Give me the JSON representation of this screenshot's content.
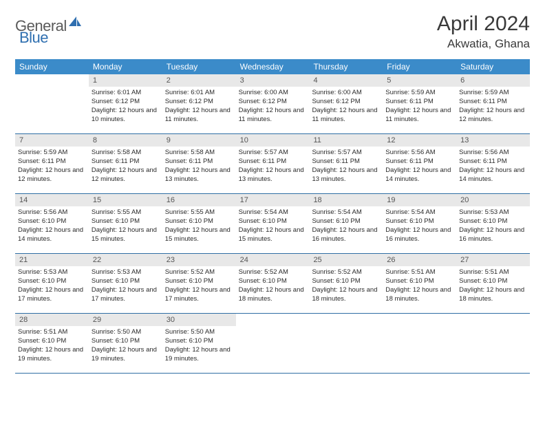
{
  "brand": {
    "part1": "General",
    "part2": "Blue",
    "accent": "#2f6fb0",
    "gray": "#5a5a5a"
  },
  "title": "April 2024",
  "location": "Akwatia, Ghana",
  "colors": {
    "header_bg": "#3b8bc9",
    "header_text": "#ffffff",
    "daynum_bg": "#e8e8e8",
    "daynum_text": "#555555",
    "body_text": "#2a2a2a",
    "row_border": "#2e6da4",
    "page_bg": "#ffffff"
  },
  "fonts": {
    "title_size": 30,
    "location_size": 17,
    "weekday_size": 12,
    "daynum_size": 11,
    "body_size": 9.5
  },
  "weekdays": [
    "Sunday",
    "Monday",
    "Tuesday",
    "Wednesday",
    "Thursday",
    "Friday",
    "Saturday"
  ],
  "blanks_before": 1,
  "days": [
    {
      "n": "1",
      "sunrise": "6:01 AM",
      "sunset": "6:12 PM",
      "daylight": "12 hours and 10 minutes."
    },
    {
      "n": "2",
      "sunrise": "6:01 AM",
      "sunset": "6:12 PM",
      "daylight": "12 hours and 11 minutes."
    },
    {
      "n": "3",
      "sunrise": "6:00 AM",
      "sunset": "6:12 PM",
      "daylight": "12 hours and 11 minutes."
    },
    {
      "n": "4",
      "sunrise": "6:00 AM",
      "sunset": "6:12 PM",
      "daylight": "12 hours and 11 minutes."
    },
    {
      "n": "5",
      "sunrise": "5:59 AM",
      "sunset": "6:11 PM",
      "daylight": "12 hours and 11 minutes."
    },
    {
      "n": "6",
      "sunrise": "5:59 AM",
      "sunset": "6:11 PM",
      "daylight": "12 hours and 12 minutes."
    },
    {
      "n": "7",
      "sunrise": "5:59 AM",
      "sunset": "6:11 PM",
      "daylight": "12 hours and 12 minutes."
    },
    {
      "n": "8",
      "sunrise": "5:58 AM",
      "sunset": "6:11 PM",
      "daylight": "12 hours and 12 minutes."
    },
    {
      "n": "9",
      "sunrise": "5:58 AM",
      "sunset": "6:11 PM",
      "daylight": "12 hours and 13 minutes."
    },
    {
      "n": "10",
      "sunrise": "5:57 AM",
      "sunset": "6:11 PM",
      "daylight": "12 hours and 13 minutes."
    },
    {
      "n": "11",
      "sunrise": "5:57 AM",
      "sunset": "6:11 PM",
      "daylight": "12 hours and 13 minutes."
    },
    {
      "n": "12",
      "sunrise": "5:56 AM",
      "sunset": "6:11 PM",
      "daylight": "12 hours and 14 minutes."
    },
    {
      "n": "13",
      "sunrise": "5:56 AM",
      "sunset": "6:11 PM",
      "daylight": "12 hours and 14 minutes."
    },
    {
      "n": "14",
      "sunrise": "5:56 AM",
      "sunset": "6:10 PM",
      "daylight": "12 hours and 14 minutes."
    },
    {
      "n": "15",
      "sunrise": "5:55 AM",
      "sunset": "6:10 PM",
      "daylight": "12 hours and 15 minutes."
    },
    {
      "n": "16",
      "sunrise": "5:55 AM",
      "sunset": "6:10 PM",
      "daylight": "12 hours and 15 minutes."
    },
    {
      "n": "17",
      "sunrise": "5:54 AM",
      "sunset": "6:10 PM",
      "daylight": "12 hours and 15 minutes."
    },
    {
      "n": "18",
      "sunrise": "5:54 AM",
      "sunset": "6:10 PM",
      "daylight": "12 hours and 16 minutes."
    },
    {
      "n": "19",
      "sunrise": "5:54 AM",
      "sunset": "6:10 PM",
      "daylight": "12 hours and 16 minutes."
    },
    {
      "n": "20",
      "sunrise": "5:53 AM",
      "sunset": "6:10 PM",
      "daylight": "12 hours and 16 minutes."
    },
    {
      "n": "21",
      "sunrise": "5:53 AM",
      "sunset": "6:10 PM",
      "daylight": "12 hours and 17 minutes."
    },
    {
      "n": "22",
      "sunrise": "5:53 AM",
      "sunset": "6:10 PM",
      "daylight": "12 hours and 17 minutes."
    },
    {
      "n": "23",
      "sunrise": "5:52 AM",
      "sunset": "6:10 PM",
      "daylight": "12 hours and 17 minutes."
    },
    {
      "n": "24",
      "sunrise": "5:52 AM",
      "sunset": "6:10 PM",
      "daylight": "12 hours and 18 minutes."
    },
    {
      "n": "25",
      "sunrise": "5:52 AM",
      "sunset": "6:10 PM",
      "daylight": "12 hours and 18 minutes."
    },
    {
      "n": "26",
      "sunrise": "5:51 AM",
      "sunset": "6:10 PM",
      "daylight": "12 hours and 18 minutes."
    },
    {
      "n": "27",
      "sunrise": "5:51 AM",
      "sunset": "6:10 PM",
      "daylight": "12 hours and 18 minutes."
    },
    {
      "n": "28",
      "sunrise": "5:51 AM",
      "sunset": "6:10 PM",
      "daylight": "12 hours and 19 minutes."
    },
    {
      "n": "29",
      "sunrise": "5:50 AM",
      "sunset": "6:10 PM",
      "daylight": "12 hours and 19 minutes."
    },
    {
      "n": "30",
      "sunrise": "5:50 AM",
      "sunset": "6:10 PM",
      "daylight": "12 hours and 19 minutes."
    }
  ],
  "labels": {
    "sunrise": "Sunrise:",
    "sunset": "Sunset:",
    "daylight": "Daylight:"
  }
}
